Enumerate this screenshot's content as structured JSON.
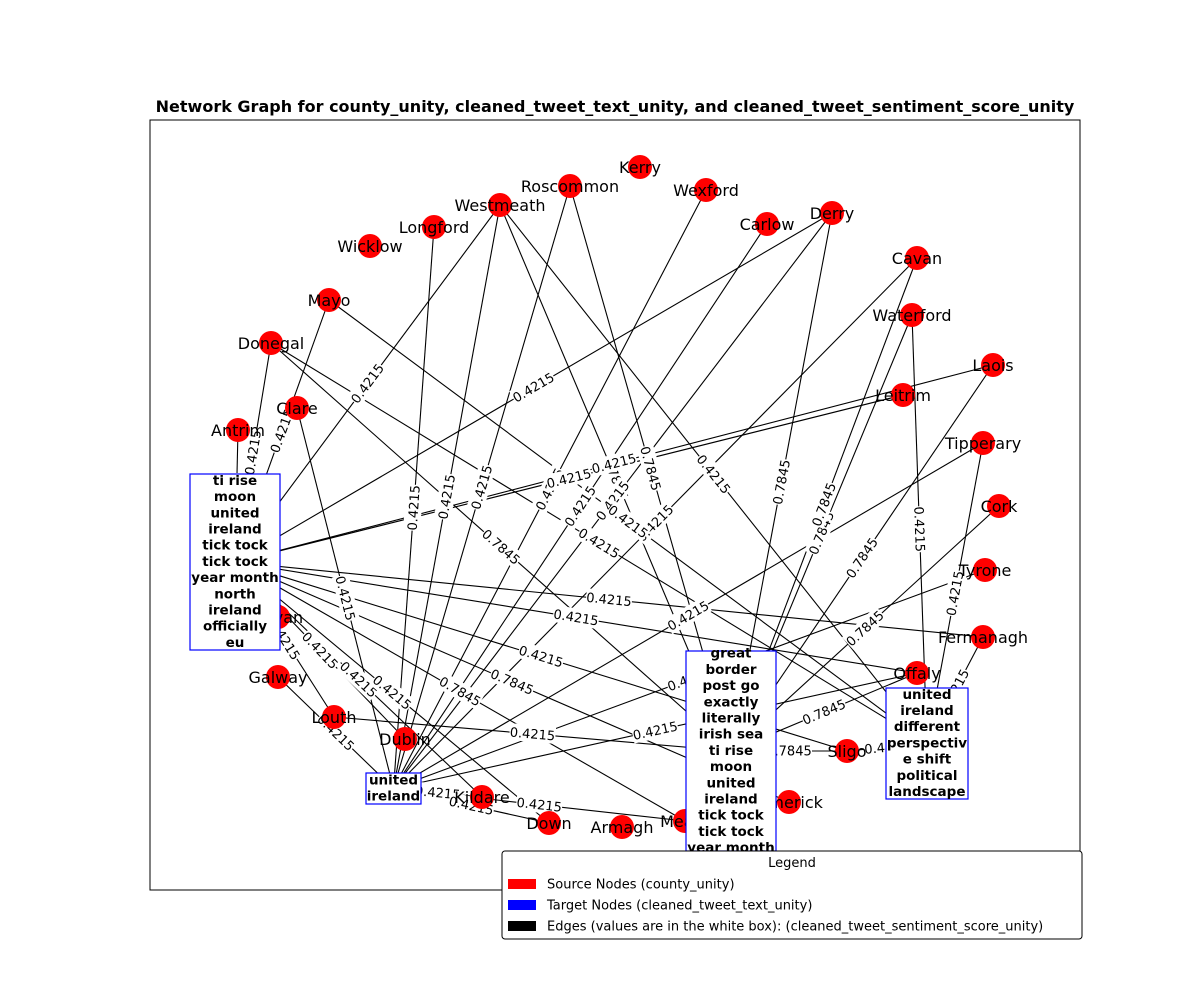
{
  "title": "Network Graph for county_unity, cleaned_tweet_text_unity, and cleaned_tweet_sentiment_score_unity",
  "colors": {
    "source": "#ff0000",
    "target_border": "#0000ff",
    "edge": "#000000"
  },
  "legend": {
    "title": "Legend",
    "items": [
      {
        "label": "Source Nodes (county_unity)",
        "color": "#ff0000"
      },
      {
        "label": "Target Nodes (cleaned_tweet_text_unity)",
        "color": "#0000ff"
      },
      {
        "label": "Edges (values are in the white box): (cleaned_tweet_sentiment_score_unity)",
        "color": "#000000"
      }
    ]
  },
  "source_nodes": [
    "Kerry",
    "Roscommon",
    "Wexford",
    "Westmeath",
    "Derry",
    "Carlow",
    "Longford",
    "Wicklow",
    "Cavan",
    "Waterford",
    "Mayo",
    "Donegal",
    "Laois",
    "Clare",
    "Leitrim",
    "Antrim",
    "Tipperary",
    "Cork",
    "Tyrone",
    "Fermanagh",
    "Cavan",
    "Galway",
    "Offaly",
    "Louth",
    "Dublin",
    "Sligo",
    "Kildare",
    "Limerick",
    "Down",
    "Armagh",
    "Meath"
  ],
  "target_nodes": [
    {
      "id": "T1",
      "lines": [
        "ti rise",
        "moon",
        "united",
        "ireland",
        "tick tock",
        "tick tock",
        "year month",
        "north",
        "ireland",
        "officially",
        "eu"
      ]
    },
    {
      "id": "T2",
      "lines": [
        "united",
        "ireland"
      ]
    },
    {
      "id": "T3",
      "lines": [
        "great",
        "border",
        "post go",
        "exactly",
        "literally",
        "irish sea",
        "ti rise",
        "moon",
        "united",
        "ireland",
        "tick tock",
        "tick tock",
        "year month"
      ]
    },
    {
      "id": "T4",
      "lines": [
        "united",
        "ireland",
        "different",
        "perspectiv",
        "e shift",
        "political",
        "landscape"
      ]
    }
  ],
  "edges": [
    {
      "source": "Westmeath",
      "target": "T2",
      "value": "0.4215"
    },
    {
      "source": "Westmeath",
      "target": "T1",
      "value": "0.4215"
    },
    {
      "source": "Westmeath",
      "target": "T4",
      "value": "0.4215"
    },
    {
      "source": "Westmeath",
      "target": "T3",
      "value": "0.7845"
    },
    {
      "source": "Roscommon",
      "target": "T2",
      "value": "0.4215"
    },
    {
      "source": "Roscommon",
      "target": "T3",
      "value": "0.7845"
    },
    {
      "source": "Wexford",
      "target": "T2",
      "value": "0.4215"
    },
    {
      "source": "Derry",
      "target": "T1",
      "value": "0.4215"
    },
    {
      "source": "Derry",
      "target": "T2",
      "value": "0.4215"
    },
    {
      "source": "Derry",
      "target": "T3",
      "value": "0.7845"
    },
    {
      "source": "Carlow",
      "target": "T2",
      "value": "0.4215"
    },
    {
      "source": "Longford",
      "target": "T2",
      "value": "0.4215"
    },
    {
      "source": "Cavan",
      "target": "T2",
      "value": "0.4215"
    },
    {
      "source": "Waterford",
      "target": "T4",
      "value": "0.4215"
    },
    {
      "source": "Waterford",
      "target": "T3",
      "value": "0.7845"
    },
    {
      "source": "Mayo",
      "target": "T4",
      "value": "0.4215"
    },
    {
      "source": "Mayo",
      "target": "T1",
      "value": "0.4215"
    },
    {
      "source": "Donegal",
      "target": "T3",
      "value": "0.7845"
    },
    {
      "source": "Donegal",
      "target": "T4",
      "value": "0.4215"
    },
    {
      "source": "Donegal",
      "target": "T1",
      "value": "0.4215"
    },
    {
      "source": "Laois",
      "target": "T1",
      "value": "0.4215"
    },
    {
      "source": "Laois",
      "target": "T3",
      "value": "0.7845"
    },
    {
      "source": "Clare",
      "target": "T2",
      "value": "0.4215"
    },
    {
      "source": "Antrim",
      "target": "T1",
      "value": "0.4215"
    },
    {
      "source": "Tipperary",
      "target": "T2",
      "value": "0.4215"
    },
    {
      "source": "Tipperary",
      "target": "T4",
      "value": "0.4215"
    },
    {
      "source": "Cork",
      "target": "T3",
      "value": "0.7845"
    },
    {
      "source": "Tyrone",
      "target": "T2",
      "value": "0.4215"
    },
    {
      "source": "Fermanagh",
      "target": "T1",
      "value": "0.4215"
    },
    {
      "source": "Fermanagh",
      "target": "T4",
      "value": "0.4215"
    },
    {
      "source": "Offaly",
      "target": "T1",
      "value": "0.4215"
    },
    {
      "source": "Offaly",
      "target": "T2",
      "value": "0.4215"
    },
    {
      "source": "Offaly",
      "target": "T3",
      "value": "0.7845"
    },
    {
      "source": "Galway",
      "target": "T2",
      "value": "0.4215"
    },
    {
      "source": "Louth",
      "target": "T3",
      "value": "0.4215"
    },
    {
      "source": "Louth",
      "target": "T1",
      "value": "0.4215"
    },
    {
      "source": "Dublin",
      "target": "T1",
      "value": "0.4215"
    },
    {
      "source": "Sligo",
      "target": "T1",
      "value": "0.4215"
    },
    {
      "source": "Sligo",
      "target": "T3",
      "value": "0.7845"
    },
    {
      "source": "Sligo",
      "target": "T4",
      "value": "0.4215"
    },
    {
      "source": "Kildare",
      "target": "T2",
      "value": "0.4215"
    },
    {
      "source": "Kildare",
      "target": "T1",
      "value": "0.4215"
    },
    {
      "source": "Down",
      "target": "T2",
      "value": "0.4215"
    },
    {
      "source": "Down",
      "target": "T1",
      "value": "0.4215"
    },
    {
      "source": "Meath",
      "target": "T2",
      "value": "0.4215"
    },
    {
      "source": "Meath",
      "target": "T1",
      "value": "0.7845"
    },
    {
      "source": "Limerick",
      "target": "T1",
      "value": "0.7845"
    },
    {
      "source": "Cavan",
      "target": "T3",
      "value": "0.7845"
    },
    {
      "source": "Leitrim",
      "target": "T1",
      "value": "0.4215"
    }
  ]
}
